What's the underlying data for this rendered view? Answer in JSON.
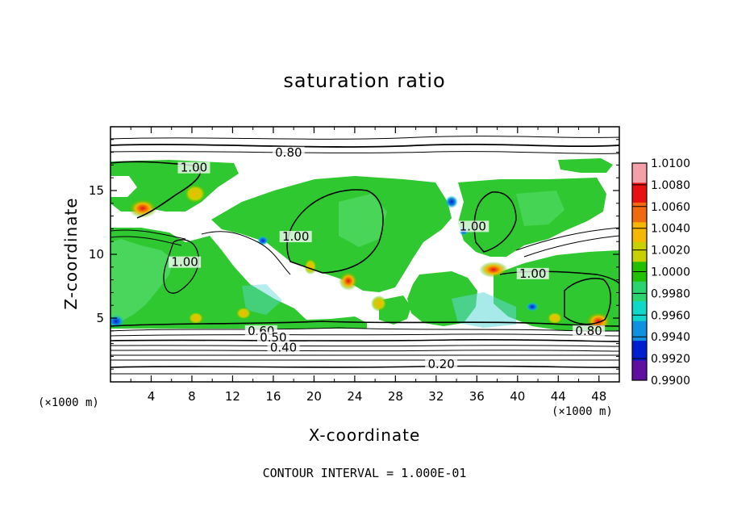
{
  "chart_data": {
    "type": "heatmap",
    "title": "saturation ratio",
    "xlabel": "X-coordinate",
    "ylabel": "Z-coordinate",
    "x_unit_left": "(×1000 m)",
    "x_unit_right": "(×1000 m)",
    "xlim": [
      0,
      50
    ],
    "ylim": [
      0,
      20
    ],
    "x_ticks": [
      4,
      8,
      12,
      16,
      20,
      24,
      28,
      32,
      36,
      40,
      44,
      48
    ],
    "x_tick_labels": [
      "4",
      "8",
      "12",
      "16",
      "20",
      "24",
      "28",
      "32",
      "36",
      "40",
      "44",
      "48"
    ],
    "y_ticks": [
      5,
      10,
      15
    ],
    "y_tick_labels": [
      "5",
      "10",
      "15"
    ],
    "colorbar": {
      "min": 0.99,
      "max": 1.01,
      "labels": [
        "1.0100",
        "1.0080",
        "1.0060",
        "1.0040",
        "1.0020",
        "1.0000",
        "0.9980",
        "0.9960",
        "0.9940",
        "0.9920",
        "0.9900"
      ],
      "colors": [
        "#f4a0a8",
        "#e81010",
        "#f26a10",
        "#f5b800",
        "#c8d000",
        "#22c000",
        "#2cd470",
        "#10d8c8",
        "#1090e0",
        "#0020d0",
        "#6010a0"
      ]
    },
    "contour_labels": [
      {
        "text": "0.80",
        "x": 17.5,
        "z": 17.8
      },
      {
        "text": "1.00",
        "x": 8.2,
        "z": 16.6
      },
      {
        "text": "1.00",
        "x": 18.2,
        "z": 11.2
      },
      {
        "text": "1.00",
        "x": 35.6,
        "z": 12.0
      },
      {
        "text": "1.00",
        "x": 41.5,
        "z": 8.3
      },
      {
        "text": "1.00",
        "x": 7.3,
        "z": 9.2
      },
      {
        "text": "0.80",
        "x": 47.0,
        "z": 3.8
      },
      {
        "text": "0.60",
        "x": 14.8,
        "z": 3.8
      },
      {
        "text": "0.50",
        "x": 16.0,
        "z": 3.3
      },
      {
        "text": "0.40",
        "x": 17.0,
        "z": 2.5
      },
      {
        "text": "0.20",
        "x": 32.5,
        "z": 1.2
      }
    ],
    "contour_interval_text": "CONTOUR INTERVAL = 1.000E-01"
  },
  "colors": {
    "background": "#ffffff",
    "axis": "#000000",
    "field_main": "#2fc830",
    "field_light": "#5ee07a",
    "field_cyan": "#60d8d8"
  }
}
